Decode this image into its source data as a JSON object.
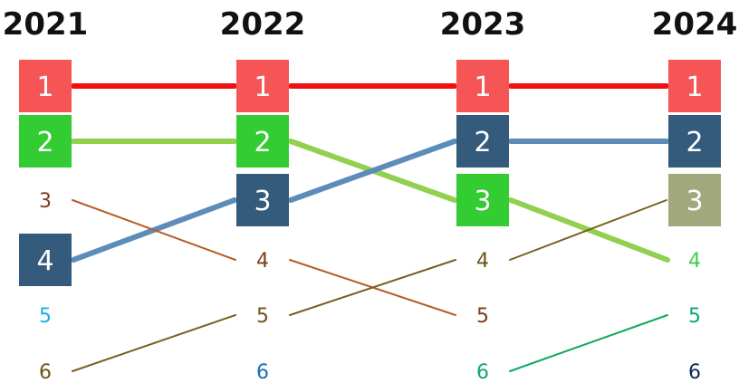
{
  "years": [
    "2021",
    "2022",
    "2023",
    "2024"
  ],
  "columns": [
    {
      "year": "2021",
      "ranks": [
        {
          "label": "1",
          "boxed": true,
          "color": "#f65555"
        },
        {
          "label": "2",
          "boxed": true,
          "color": "#33cc33"
        },
        {
          "label": "3",
          "boxed": false,
          "color": "#7b3f1e"
        },
        {
          "label": "4",
          "boxed": true,
          "color": "#345a7c"
        },
        {
          "label": "5",
          "boxed": false,
          "color": "#19aee8"
        },
        {
          "label": "6",
          "boxed": false,
          "color": "#6e5418"
        }
      ]
    },
    {
      "year": "2022",
      "ranks": [
        {
          "label": "1",
          "boxed": true,
          "color": "#f65555"
        },
        {
          "label": "2",
          "boxed": true,
          "color": "#33cc33"
        },
        {
          "label": "3",
          "boxed": true,
          "color": "#345a7c"
        },
        {
          "label": "4",
          "boxed": false,
          "color": "#7b3f1e"
        },
        {
          "label": "5",
          "boxed": false,
          "color": "#6e5418"
        },
        {
          "label": "6",
          "boxed": false,
          "color": "#1a6fae"
        }
      ]
    },
    {
      "year": "2023",
      "ranks": [
        {
          "label": "1",
          "boxed": true,
          "color": "#f65555"
        },
        {
          "label": "2",
          "boxed": true,
          "color": "#345a7c"
        },
        {
          "label": "3",
          "boxed": true,
          "color": "#33cc33"
        },
        {
          "label": "4",
          "boxed": false,
          "color": "#6e5418"
        },
        {
          "label": "5",
          "boxed": false,
          "color": "#7b3f1e"
        },
        {
          "label": "6",
          "boxed": false,
          "color": "#10a86a"
        }
      ]
    },
    {
      "year": "2024",
      "ranks": [
        {
          "label": "1",
          "boxed": true,
          "color": "#f65555"
        },
        {
          "label": "2",
          "boxed": true,
          "color": "#345a7c"
        },
        {
          "label": "3",
          "boxed": true,
          "color": "#a1a97c"
        },
        {
          "label": "4",
          "boxed": false,
          "color": "#44cc44"
        },
        {
          "label": "5",
          "boxed": false,
          "color": "#10a86a"
        },
        {
          "label": "6",
          "boxed": false,
          "color": "#0f2752"
        }
      ]
    }
  ],
  "connections": [
    {
      "from_col": 0,
      "from_rank": 1,
      "to_col": 1,
      "to_rank": 1,
      "color": "#ee1111",
      "weight": "heavy"
    },
    {
      "from_col": 1,
      "from_rank": 1,
      "to_col": 2,
      "to_rank": 1,
      "color": "#ee1111",
      "weight": "heavy"
    },
    {
      "from_col": 2,
      "from_rank": 1,
      "to_col": 3,
      "to_rank": 1,
      "color": "#ee1111",
      "weight": "heavy"
    },
    {
      "from_col": 0,
      "from_rank": 2,
      "to_col": 1,
      "to_rank": 2,
      "color": "#92d050",
      "weight": "heavy"
    },
    {
      "from_col": 1,
      "from_rank": 2,
      "to_col": 2,
      "to_rank": 3,
      "color": "#92d050",
      "weight": "heavy"
    },
    {
      "from_col": 2,
      "from_rank": 3,
      "to_col": 3,
      "to_rank": 4,
      "color": "#92d050",
      "weight": "heavy"
    },
    {
      "from_col": 0,
      "from_rank": 4,
      "to_col": 1,
      "to_rank": 3,
      "color": "#5b8db8",
      "weight": "heavy"
    },
    {
      "from_col": 1,
      "from_rank": 3,
      "to_col": 2,
      "to_rank": 2,
      "color": "#5b8db8",
      "weight": "heavy"
    },
    {
      "from_col": 2,
      "from_rank": 2,
      "to_col": 3,
      "to_rank": 2,
      "color": "#5b8db8",
      "weight": "heavy"
    },
    {
      "from_col": 0,
      "from_rank": 3,
      "to_col": 1,
      "to_rank": 4,
      "color": "#b85c28",
      "weight": "thin"
    },
    {
      "from_col": 1,
      "from_rank": 4,
      "to_col": 2,
      "to_rank": 5,
      "color": "#b85c28",
      "weight": "thin"
    },
    {
      "from_col": 0,
      "from_rank": 6,
      "to_col": 1,
      "to_rank": 5,
      "color": "#7a6020",
      "weight": "thin"
    },
    {
      "from_col": 1,
      "from_rank": 5,
      "to_col": 2,
      "to_rank": 4,
      "color": "#7a6020",
      "weight": "thin"
    },
    {
      "from_col": 2,
      "from_rank": 4,
      "to_col": 3,
      "to_rank": 3,
      "color": "#7a6020",
      "weight": "thin"
    },
    {
      "from_col": 2,
      "from_rank": 6,
      "to_col": 3,
      "to_rank": 5,
      "color": "#10a860",
      "weight": "thin"
    }
  ]
}
